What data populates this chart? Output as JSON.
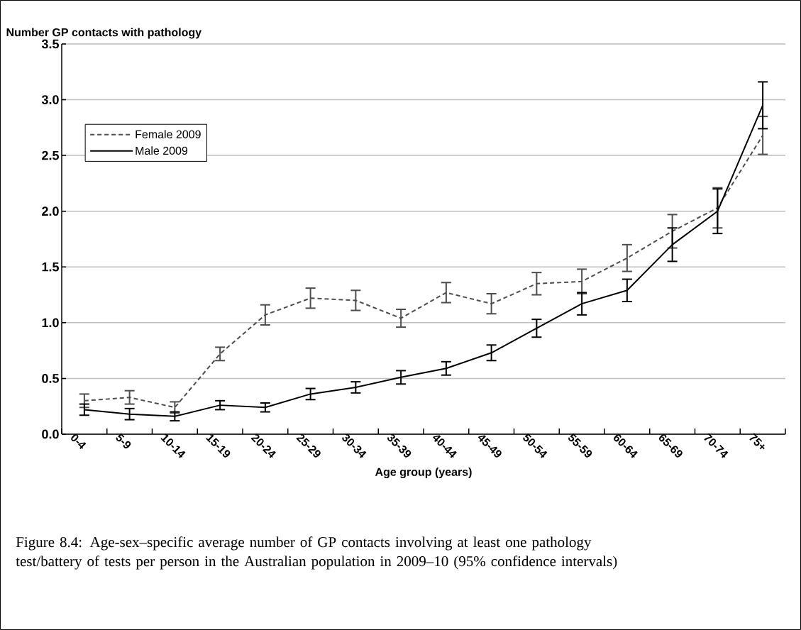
{
  "chart_data": {
    "type": "line",
    "ylabel": "Number GP contacts with pathology",
    "xlabel": "Age group (years)",
    "annotations": [
      "Figure 8.4: Age-sex–specific average number of GP contacts involving at least one pathology test/battery of tests per person in the Australian population in 2009–10 (95% confidence intervals)"
    ],
    "categories": [
      "0-4",
      "5-9",
      "10-14",
      "15-19",
      "20-24",
      "25-29",
      "30-34",
      "35-39",
      "40-44",
      "45-49",
      "50-54",
      "55-59",
      "60-64",
      "65-69",
      "70-74",
      "75+"
    ],
    "series": [
      {
        "name": "Female 2009",
        "color": "#4d4d4d",
        "line_style": "dashed",
        "values": [
          0.3,
          0.33,
          0.24,
          0.72,
          1.07,
          1.22,
          1.2,
          1.04,
          1.27,
          1.17,
          1.35,
          1.37,
          1.58,
          1.82,
          2.03,
          2.68
        ],
        "errors": [
          0.06,
          0.06,
          0.05,
          0.06,
          0.09,
          0.09,
          0.09,
          0.08,
          0.09,
          0.09,
          0.1,
          0.11,
          0.12,
          0.15,
          0.18,
          0.17
        ]
      },
      {
        "name": "Male 2009",
        "color": "#000000",
        "line_style": "solid",
        "values": [
          0.22,
          0.18,
          0.16,
          0.26,
          0.24,
          0.36,
          0.42,
          0.51,
          0.59,
          0.73,
          0.95,
          1.17,
          1.29,
          1.7,
          2.0,
          2.95
        ],
        "errors": [
          0.05,
          0.05,
          0.04,
          0.04,
          0.04,
          0.05,
          0.05,
          0.06,
          0.06,
          0.07,
          0.08,
          0.1,
          0.1,
          0.15,
          0.2,
          0.21
        ]
      }
    ],
    "ylim": [
      0,
      3.5
    ],
    "yticks": [
      {
        "value": 0,
        "label": "0.0"
      },
      {
        "value": 0.5,
        "label": "0.5"
      },
      {
        "value": 1,
        "label": "1.0"
      },
      {
        "value": 1.5,
        "label": "1.5"
      },
      {
        "value": 2,
        "label": "2.0"
      },
      {
        "value": 2.5,
        "label": "2.5"
      },
      {
        "value": 3,
        "label": "3.0"
      },
      {
        "value": 3.5,
        "label": "3.5"
      }
    ],
    "grid": "y",
    "legend": "top left"
  }
}
